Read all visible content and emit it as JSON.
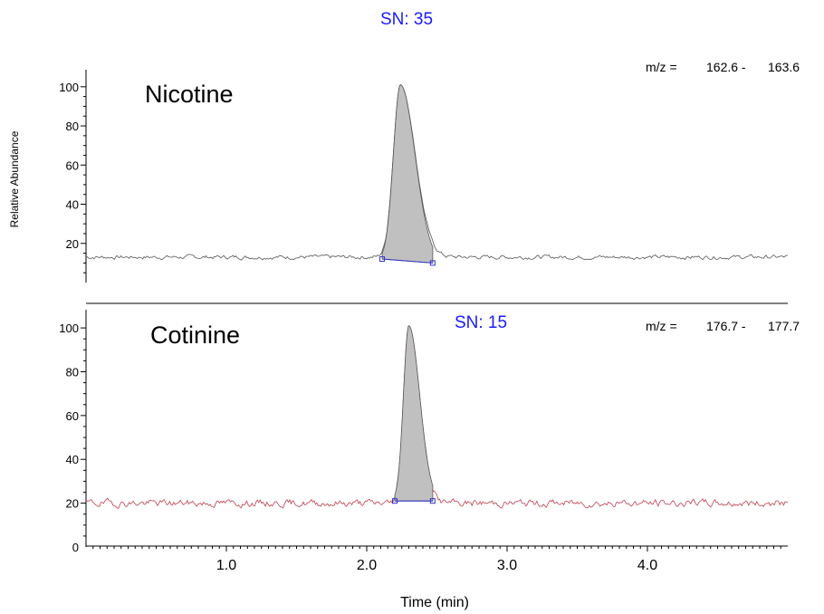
{
  "chart_data": [
    {
      "type": "line",
      "compound": "Nicotine",
      "sn_label": "SN: 35",
      "mz_prefix": "m/z =",
      "mz_low": "162.6 -",
      "mz_high": "163.6",
      "ylabel": "Relative Abundance",
      "yticks": [
        20,
        40,
        60,
        80,
        100
      ],
      "ylim": [
        0,
        105
      ],
      "xlim": [
        0.0,
        5.0
      ],
      "baseline_level": 13,
      "peak": {
        "rt": 2.24,
        "height": 101,
        "start": 2.11,
        "end": 2.47,
        "baseline_start": 12,
        "baseline_end": 10
      },
      "colors": {
        "trace": "#555555",
        "fill": "#c0c0c0",
        "baseline": "#3333cc"
      }
    },
    {
      "type": "line",
      "compound": "Cotinine",
      "sn_label": "SN: 15",
      "mz_prefix": "m/z =",
      "mz_low": "176.7 -",
      "mz_high": "177.7",
      "yticks": [
        0,
        20,
        40,
        60,
        80,
        100
      ],
      "ylim": [
        0,
        105
      ],
      "xlim": [
        0.0,
        5.0
      ],
      "baseline_level": 20,
      "peak": {
        "rt": 2.3,
        "height": 101,
        "start": 2.2,
        "end": 2.47,
        "baseline_start": 21,
        "baseline_end": 21
      },
      "colors": {
        "trace": "#c04050",
        "fill": "#c0c0c0",
        "baseline": "#3333cc"
      }
    }
  ],
  "x_axis": {
    "label": "Time (min)",
    "ticks": [
      1.0,
      2.0,
      3.0,
      4.0
    ],
    "tick_labels": [
      "1.0",
      "2.0",
      "3.0",
      "4.0"
    ]
  }
}
